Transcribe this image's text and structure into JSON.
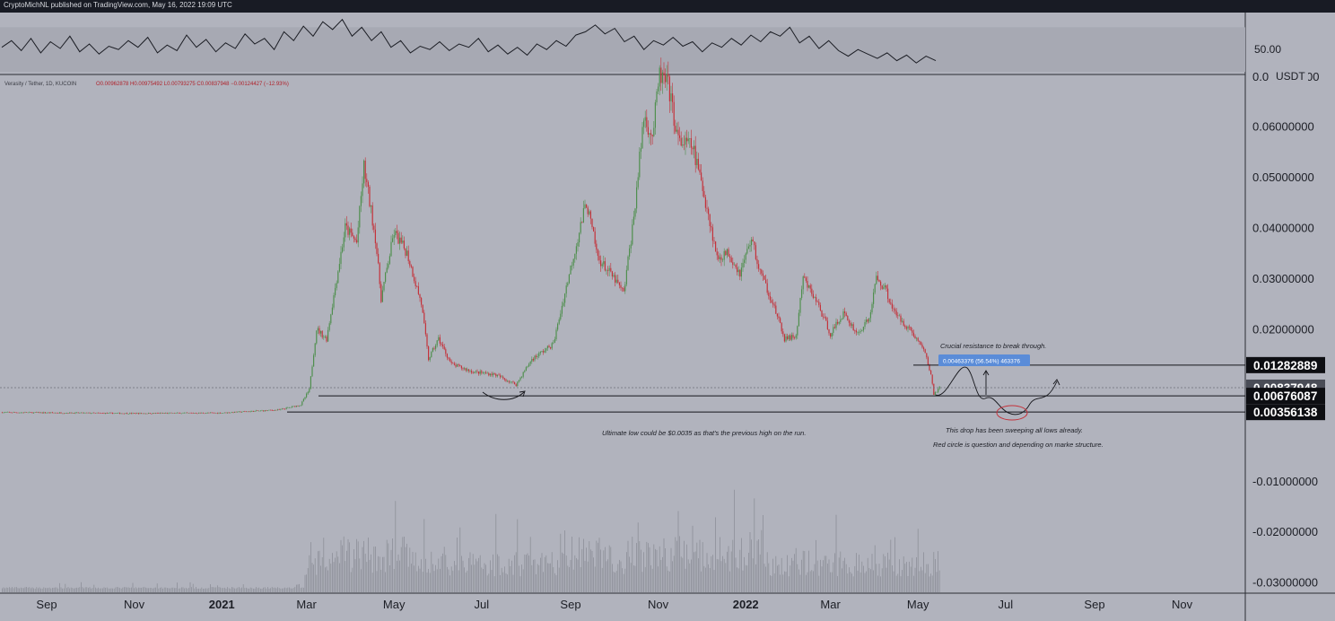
{
  "header": {
    "publish_line": "CryptoMichNL published on TradingView.com, May 16, 2022 19:09 UTC"
  },
  "colors": {
    "background": "#b1b3bd",
    "up": "#4f8f4e",
    "down": "#c4323b",
    "label_bg": "#0d0e12",
    "label_last_bg": "#4a4d57",
    "measure_bg": "#5a8cd8"
  },
  "oscillator": {
    "level_label": "50.00",
    "range": [
      30,
      80
    ],
    "values": [
      52,
      58,
      49,
      60,
      47,
      57,
      51,
      62,
      48,
      55,
      46,
      53,
      50,
      58,
      52,
      61,
      47,
      54,
      49,
      63,
      52,
      59,
      48,
      56,
      51,
      64,
      55,
      60,
      50,
      66,
      58,
      71,
      62,
      75,
      68,
      77,
      62,
      70,
      58,
      66,
      52,
      58,
      47,
      53,
      50,
      57,
      49,
      55,
      52,
      60,
      48,
      54,
      46,
      52,
      45,
      55,
      50,
      58,
      53,
      63,
      66,
      72,
      64,
      69,
      57,
      62,
      50,
      58,
      54,
      61,
      53,
      57,
      48,
      56,
      52,
      60,
      54,
      63,
      57,
      66,
      62,
      70,
      56,
      62,
      51,
      58,
      49,
      44,
      50,
      46,
      42,
      47,
      40,
      45,
      38,
      44,
      40
    ]
  },
  "instrument": {
    "legend": "Verasity / Tether, 1D, KUCOIN",
    "ohlc": "O0.00962878  H0.00975492  L0.00793275  C0.00837948  −0.00124427 (−12.93%)"
  },
  "chart_data": {
    "type": "candlestick",
    "title": "Verasity / Tether, 1D, KUCOIN",
    "xlabel": "",
    "ylabel": "USDT",
    "ylim": [
      -0.032,
      0.07
    ],
    "x_ticks": [
      "Sep",
      "Nov",
      "2021",
      "Mar",
      "May",
      "Jul",
      "Sep",
      "Nov",
      "2022",
      "Mar",
      "May",
      "Jul",
      "Sep",
      "Nov"
    ],
    "y_ticks": [
      "0.06000000",
      "0.05000000",
      "0.04000000",
      "0.03000000",
      "0.02000000",
      "-0.01000000",
      "-0.02000000",
      "-0.03000000"
    ],
    "price_waypoints": [
      [
        "2020-08-01",
        0.0035
      ],
      [
        "2020-11-01",
        0.0033
      ],
      [
        "2021-01-01",
        0.0034
      ],
      [
        "2021-02-10",
        0.004
      ],
      [
        "2021-02-25",
        0.005
      ],
      [
        "2021-03-03",
        0.008
      ],
      [
        "2021-03-08",
        0.02
      ],
      [
        "2021-03-15",
        0.018
      ],
      [
        "2021-03-28",
        0.04
      ],
      [
        "2021-04-05",
        0.037
      ],
      [
        "2021-04-10",
        0.052
      ],
      [
        "2021-04-14",
        0.045
      ],
      [
        "2021-04-18",
        0.038
      ],
      [
        "2021-04-22",
        0.026
      ],
      [
        "2021-05-01",
        0.039
      ],
      [
        "2021-05-10",
        0.035
      ],
      [
        "2021-05-20",
        0.025
      ],
      [
        "2021-05-25",
        0.014
      ],
      [
        "2021-06-01",
        0.018
      ],
      [
        "2021-06-10",
        0.013
      ],
      [
        "2021-06-25",
        0.0115
      ],
      [
        "2021-07-10",
        0.011
      ],
      [
        "2021-07-25",
        0.009
      ],
      [
        "2021-08-05",
        0.014
      ],
      [
        "2021-08-20",
        0.017
      ],
      [
        "2021-09-01",
        0.032
      ],
      [
        "2021-09-12",
        0.045
      ],
      [
        "2021-09-20",
        0.034
      ],
      [
        "2021-10-01",
        0.03
      ],
      [
        "2021-10-08",
        0.027
      ],
      [
        "2021-10-15",
        0.042
      ],
      [
        "2021-10-22",
        0.062
      ],
      [
        "2021-10-28",
        0.058
      ],
      [
        "2021-11-02",
        0.07
      ],
      [
        "2021-11-08",
        0.068
      ],
      [
        "2021-11-15",
        0.057
      ],
      [
        "2021-11-25",
        0.056
      ],
      [
        "2021-12-05",
        0.044
      ],
      [
        "2021-12-12",
        0.034
      ],
      [
        "2021-12-20",
        0.035
      ],
      [
        "2021-12-28",
        0.031
      ],
      [
        "2022-01-05",
        0.038
      ],
      [
        "2022-01-10",
        0.032
      ],
      [
        "2022-01-20",
        0.025
      ],
      [
        "2022-01-28",
        0.018
      ],
      [
        "2022-02-05",
        0.0185
      ],
      [
        "2022-02-10",
        0.03
      ],
      [
        "2022-02-20",
        0.025
      ],
      [
        "2022-03-01",
        0.019
      ],
      [
        "2022-03-10",
        0.023
      ],
      [
        "2022-03-20",
        0.019
      ],
      [
        "2022-03-28",
        0.022
      ],
      [
        "2022-04-02",
        0.03
      ],
      [
        "2022-04-08",
        0.028
      ],
      [
        "2022-04-15",
        0.023
      ],
      [
        "2022-04-25",
        0.02
      ],
      [
        "2022-05-05",
        0.016
      ],
      [
        "2022-05-10",
        0.011
      ],
      [
        "2022-05-12",
        0.007
      ],
      [
        "2022-05-16",
        0.0084
      ]
    ],
    "levels": [
      0.01282889,
      0.00837948,
      0.00676087,
      0.00356138
    ],
    "level_labels": [
      "0.01282889",
      "0.00837948",
      "0.00676087",
      "0.00356138"
    ],
    "last_price": 0.00837948,
    "overlapping_labels": [
      "0.0",
      "USDT",
      "00"
    ],
    "measure_label": "0.00463376 (56.54%) 463376",
    "annotations": [
      "Crucial resistance to break through.",
      "Ultimate low could be $0.0035 as that's the previous high on the run.",
      "This drop has been sweeping all lows already.",
      "Red circle is question and depending on marke structure."
    ],
    "grid": false,
    "legend_position": "top-left"
  }
}
